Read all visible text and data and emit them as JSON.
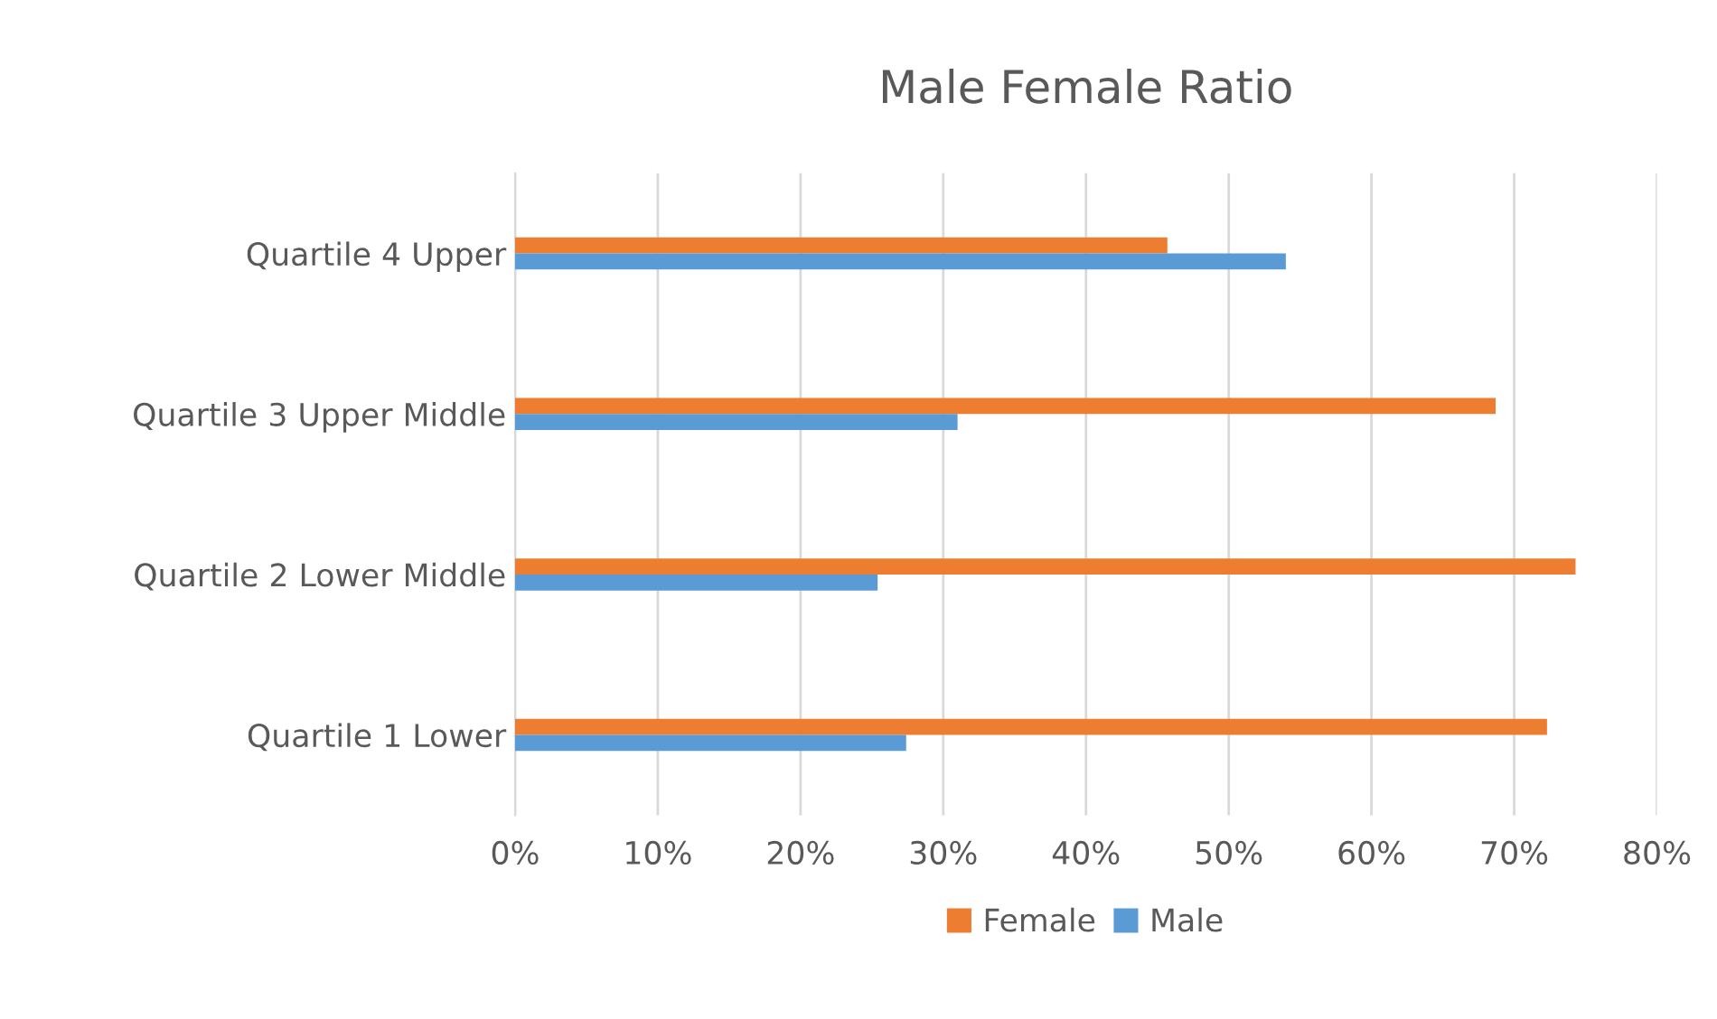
{
  "chart_data": {
    "type": "bar",
    "orientation": "horizontal",
    "title": "Male Female Ratio",
    "categories": [
      "Quartile 4 Upper",
      "Quartile 3 Upper Middle",
      "Quartile 2 Lower Middle",
      "Quartile 1 Lower"
    ],
    "series": [
      {
        "name": "Female",
        "color": "#ed7d31",
        "values": [
          45.7,
          68.7,
          74.3,
          72.3
        ]
      },
      {
        "name": "Male",
        "color": "#5b9bd5",
        "values": [
          54.0,
          31.0,
          25.4,
          27.4
        ]
      }
    ],
    "xlim": [
      0,
      80
    ],
    "xticks": [
      {
        "value": 0,
        "label": "0%"
      },
      {
        "value": 10,
        "label": "10%"
      },
      {
        "value": 20,
        "label": "20%"
      },
      {
        "value": 30,
        "label": "30%"
      },
      {
        "value": 40,
        "label": "40%"
      },
      {
        "value": 50,
        "label": "50%"
      },
      {
        "value": 60,
        "label": "60%"
      },
      {
        "value": 70,
        "label": "70%"
      },
      {
        "value": 80,
        "label": "80%"
      }
    ],
    "grid": "x",
    "legend": "bottom"
  }
}
